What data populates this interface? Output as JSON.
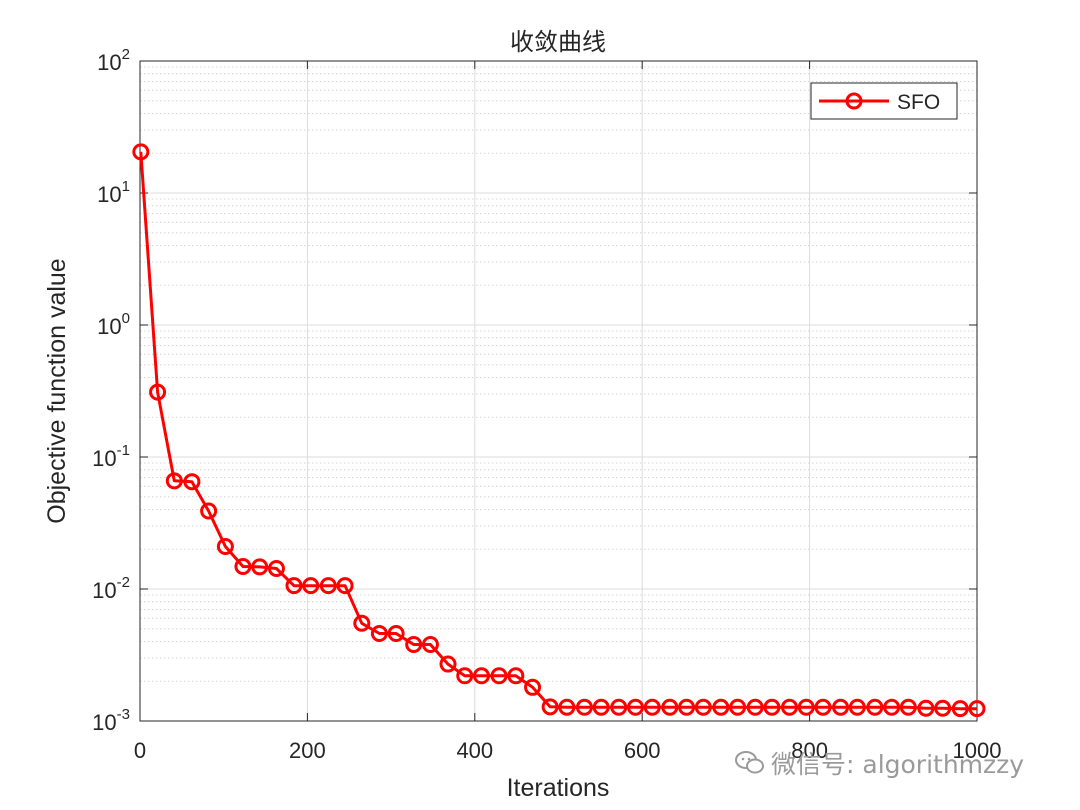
{
  "chart_data": {
    "type": "line",
    "title": "收敛曲线",
    "xlabel": "Iterations",
    "ylabel": "Objective function value",
    "xlim": [
      0,
      1000
    ],
    "ylim": [
      0.001,
      100
    ],
    "yscale": "log",
    "grid": true,
    "minor_grid": true,
    "legend_position": "top-right",
    "x_ticks": [
      0,
      200,
      400,
      600,
      800,
      1000
    ],
    "y_ticks": [
      {
        "base": "10",
        "exp": "-3"
      },
      {
        "base": "10",
        "exp": "-2"
      },
      {
        "base": "10",
        "exp": "-1"
      },
      {
        "base": "10",
        "exp": "0"
      },
      {
        "base": "10",
        "exp": "1"
      },
      {
        "base": "10",
        "exp": "2"
      }
    ],
    "series": [
      {
        "name": "SFO",
        "color": "#ff0000",
        "marker": "circle",
        "x": [
          1,
          21,
          41,
          62,
          82,
          102,
          123,
          143,
          163,
          184,
          204,
          225,
          245,
          265,
          286,
          306,
          327,
          347,
          368,
          388,
          408,
          429,
          449,
          469,
          490,
          510,
          531,
          551,
          572,
          592,
          612,
          633,
          653,
          673,
          694,
          714,
          735,
          755,
          776,
          796,
          816,
          837,
          857,
          878,
          898,
          918,
          939,
          959,
          980,
          1000
        ],
        "y": [
          20.5,
          0.31,
          0.066,
          0.065,
          0.039,
          0.021,
          0.0148,
          0.0147,
          0.0143,
          0.0106,
          0.0106,
          0.0106,
          0.0106,
          0.0055,
          0.0046,
          0.0046,
          0.0038,
          0.0038,
          0.0027,
          0.0022,
          0.0022,
          0.0022,
          0.0022,
          0.0018,
          0.00128,
          0.00127,
          0.00127,
          0.00127,
          0.00127,
          0.00127,
          0.00127,
          0.00127,
          0.00127,
          0.00127,
          0.00127,
          0.00127,
          0.00127,
          0.00127,
          0.00127,
          0.00127,
          0.00127,
          0.00127,
          0.00127,
          0.00127,
          0.00127,
          0.00127,
          0.00125,
          0.00125,
          0.00124,
          0.00124
        ]
      }
    ]
  },
  "watermark": {
    "icon": "wechat-icon",
    "text": "微信号: algorithmzzy"
  }
}
